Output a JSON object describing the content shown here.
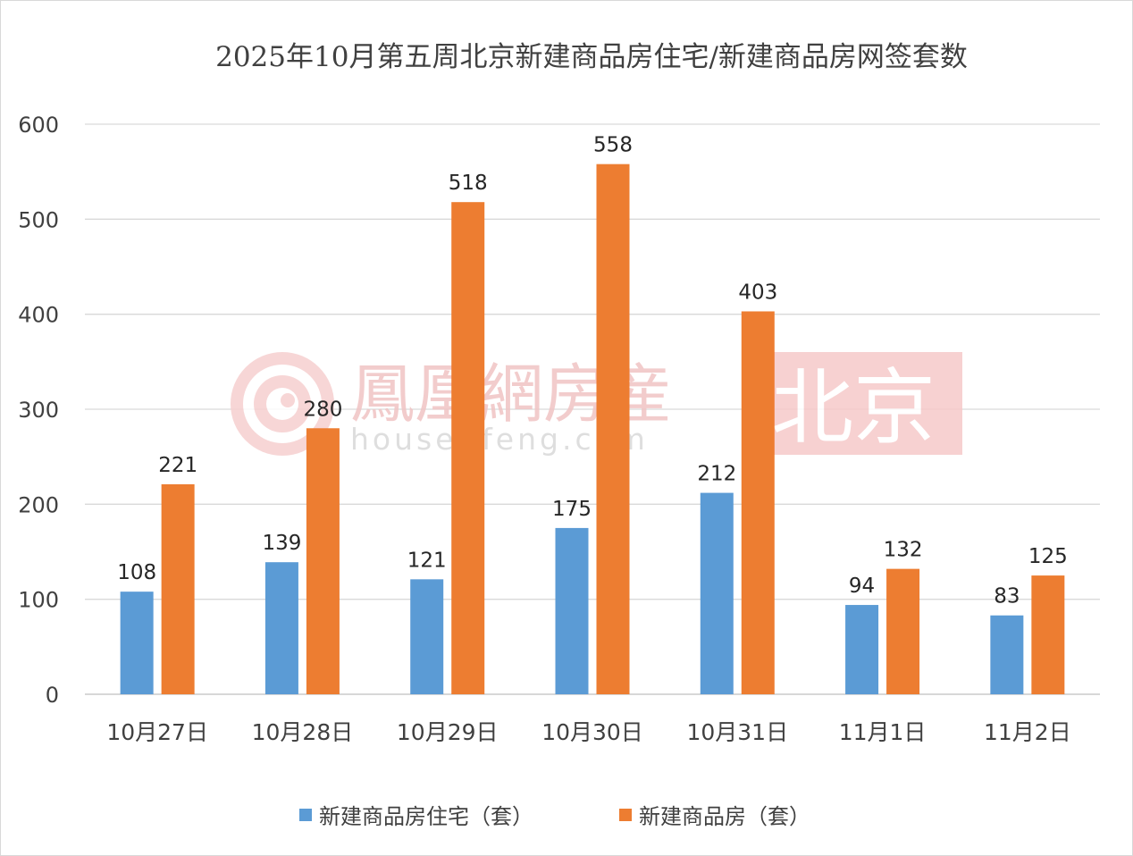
{
  "chart_data": {
    "type": "bar",
    "title": "2025年10月第五周北京新建商品房住宅/新建商品房网签套数",
    "categories": [
      "10月27日",
      "10月28日",
      "10月29日",
      "10月30日",
      "10月31日",
      "11月1日",
      "11月2日"
    ],
    "series": [
      {
        "name": "新建商品房住宅（套）",
        "color": "#5b9bd5",
        "values": [
          108,
          139,
          121,
          175,
          212,
          94,
          83
        ]
      },
      {
        "name": "新建商品房（套）",
        "color": "#ed7d31",
        "values": [
          221,
          280,
          518,
          558,
          403,
          132,
          125
        ]
      }
    ],
    "ylim": [
      0,
      600
    ],
    "yticks": [
      0,
      100,
      200,
      300,
      400,
      500,
      600
    ],
    "grid": true,
    "legend_position": "bottom",
    "data_labels": true
  },
  "watermark": {
    "brand_text": "鳳凰網房産",
    "url_text": "house.ifeng.com",
    "city_text": "北京",
    "brand_color": "#f0c4c4",
    "city_bg_color": "#f6c9c9"
  }
}
